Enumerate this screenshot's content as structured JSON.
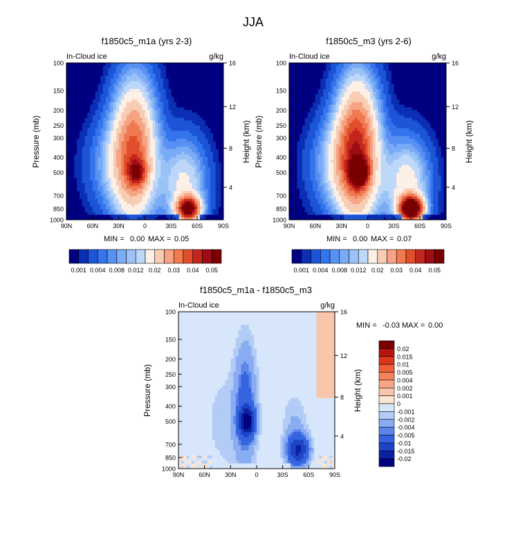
{
  "figure": {
    "title": "JJA"
  },
  "chart_data": [
    {
      "type": "heatmap",
      "title": "f1850c5_m1a (yrs 2-3)",
      "subtitle_left": "In-Cloud ice",
      "subtitle_right": "g/kg",
      "ylabel": "Pressure (mb)",
      "ylabel_right": "Height (km)",
      "x_ticks": [
        "90N",
        "60N",
        "30N",
        "0",
        "30S",
        "60S",
        "90S"
      ],
      "y_ticks": [
        "100",
        "150",
        "200",
        "250",
        "300",
        "400",
        "500",
        "700",
        "850",
        "1000"
      ],
      "y_ticks_right": [
        "16",
        "12",
        "8",
        "4"
      ],
      "ylim": [
        1000,
        100
      ],
      "xlim": [
        90,
        -90
      ],
      "stats": {
        "min_label": "MIN =",
        "min": "0.00",
        "max_label": "MAX =",
        "max": "0.05"
      },
      "colorbar_labels": [
        "0.001",
        "0.004",
        "0.008",
        "0.012",
        "0.02",
        "0.03",
        "0.04",
        "0.05"
      ],
      "blobs": [
        {
          "lat": 12,
          "p": 360,
          "peak": 0.033,
          "sx": 17,
          "sy": 0.72
        },
        {
          "lat": 9,
          "p": 500,
          "peak": 0.022,
          "sx": 7,
          "sy": 0.13
        },
        {
          "lat": 34,
          "p": 450,
          "peak": 0.009,
          "sx": 22,
          "sy": 0.46
        },
        {
          "lat": -45,
          "p": 590,
          "peak": 0.016,
          "sx": 18,
          "sy": 0.46
        },
        {
          "lat": -50,
          "p": 850,
          "peak": 0.05,
          "sx": 9,
          "sy": 0.12
        }
      ]
    },
    {
      "type": "heatmap",
      "title": "f1850c5_m3 (yrs 2-6)",
      "subtitle_left": "In-Cloud ice",
      "subtitle_right": "g/kg",
      "ylabel": "Pressure (mb)",
      "ylabel_right": "Height (km)",
      "x_ticks": [
        "90N",
        "60N",
        "30N",
        "0",
        "30S",
        "60S",
        "90S"
      ],
      "y_ticks": [
        "100",
        "150",
        "200",
        "250",
        "300",
        "400",
        "500",
        "700",
        "850",
        "1000"
      ],
      "y_ticks_right": [
        "16",
        "12",
        "8",
        "4"
      ],
      "ylim": [
        1000,
        100
      ],
      "xlim": [
        90,
        -90
      ],
      "stats": {
        "min_label": "MIN =",
        "min": "0.00",
        "max_label": "MAX =",
        "max": "0.07"
      },
      "colorbar_labels": [
        "0.001",
        "0.004",
        "0.008",
        "0.012",
        "0.02",
        "0.03",
        "0.04",
        "0.05"
      ],
      "blobs": [
        {
          "lat": 12,
          "p": 360,
          "peak": 0.04,
          "sx": 17,
          "sy": 0.72
        },
        {
          "lat": 10,
          "p": 500,
          "peak": 0.045,
          "sx": 7,
          "sy": 0.13
        },
        {
          "lat": 34,
          "p": 450,
          "peak": 0.011,
          "sx": 22,
          "sy": 0.46
        },
        {
          "lat": -45,
          "p": 590,
          "peak": 0.018,
          "sx": 18,
          "sy": 0.46
        },
        {
          "lat": -50,
          "p": 850,
          "peak": 0.065,
          "sx": 9,
          "sy": 0.12
        }
      ]
    },
    {
      "type": "heatmap",
      "title": "f1850c5_m1a - f1850c5_m3",
      "subtitle_left": "In-Cloud ice",
      "subtitle_right": "g/kg",
      "ylabel": "Pressure (mb)",
      "ylabel_right": "Height (km)",
      "x_ticks": [
        "90N",
        "60N",
        "30N",
        "0",
        "30S",
        "60S",
        "90S"
      ],
      "y_ticks": [
        "100",
        "150",
        "200",
        "250",
        "300",
        "400",
        "500",
        "700",
        "850",
        "1000"
      ],
      "y_ticks_right": [
        "16",
        "12",
        "8",
        "4"
      ],
      "ylim": [
        1000,
        100
      ],
      "xlim": [
        90,
        -90
      ],
      "stats": {
        "min_label": "MIN =",
        "min": "-0.03",
        "max_label": "MAX =",
        "max": "0.00"
      },
      "colorbar_labels": [
        "0.02",
        "0.015",
        "0.01",
        "0.005",
        "0.004",
        "0.002",
        "0.001",
        "0",
        "-0.001",
        "-0.002",
        "-0.004",
        "-0.005",
        "-0.01",
        "-0.015",
        "-0.02"
      ],
      "blobs": [
        {
          "lat": 11,
          "p": 500,
          "peak": -0.02,
          "sx": 6,
          "sy": 0.14
        },
        {
          "lat": 13,
          "p": 380,
          "peak": -0.006,
          "sx": 8,
          "sy": 0.6
        },
        {
          "lat": -48,
          "p": 760,
          "peak": -0.015,
          "sx": 8,
          "sy": 0.14
        },
        {
          "lat": -44,
          "p": 600,
          "peak": -0.0025,
          "sx": 10,
          "sy": 0.4
        },
        {
          "lat": 32,
          "p": 500,
          "peak": -0.0015,
          "sx": 22,
          "sy": 0.6
        }
      ]
    }
  ],
  "palettes": {
    "seq": [
      "#000080",
      "#0a2fb4",
      "#1c55d8",
      "#3474ec",
      "#5891f4",
      "#7aabf6",
      "#9bc3f7",
      "#bed8fa",
      "#fdf0e6",
      "#f8cdb4",
      "#f6a483",
      "#f07a51",
      "#e24e2b",
      "#c4261d",
      "#9d0d13",
      "#7a0000"
    ],
    "seq_bounds": [
      0.001,
      0.002,
      0.004,
      0.006,
      0.008,
      0.01,
      0.012,
      0.015,
      0.02,
      0.025,
      0.03,
      0.035,
      0.04,
      0.045,
      0.05
    ],
    "div": [
      "#7a0000",
      "#b5150f",
      "#dc361e",
      "#f05f36",
      "#f5825d",
      "#f8a485",
      "#f9c6ac",
      "#fde5d4",
      "#d7e6fb",
      "#b2ccf6",
      "#89acf2",
      "#5c86ea",
      "#3564e0",
      "#1d44c7",
      "#0a22a0",
      "#000080"
    ]
  }
}
